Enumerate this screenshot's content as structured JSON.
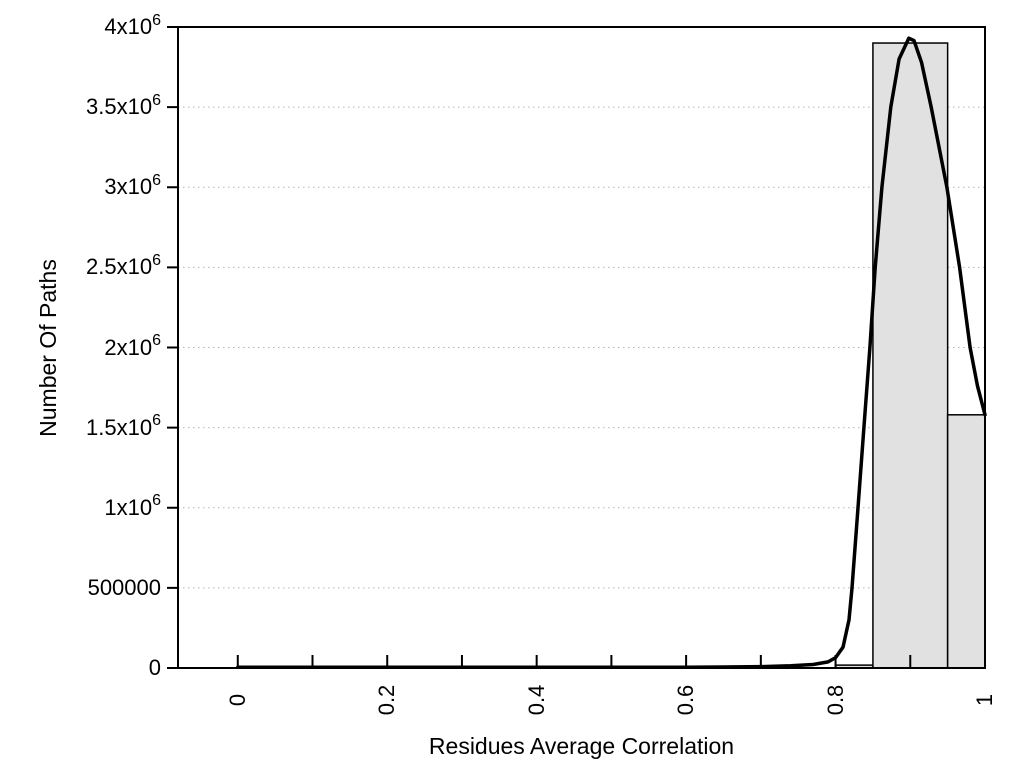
{
  "chart_data": {
    "type": "histogram_with_fit_curve",
    "title": "",
    "x_axis": {
      "title": "Residues Average Correlation",
      "range": [
        -0.08,
        1.0
      ],
      "tick_interval": 0.1,
      "label_interval": 0.2,
      "tick_values": [
        0,
        0.1,
        0.2,
        0.3,
        0.4,
        0.5,
        0.6,
        0.7,
        0.8,
        0.9,
        1.0
      ],
      "labels": [
        {
          "value": 0,
          "text": "0"
        },
        {
          "value": 0.2,
          "text": "0.2"
        },
        {
          "value": 0.4,
          "text": "0.4"
        },
        {
          "value": 0.6,
          "text": "0.6"
        },
        {
          "value": 0.8,
          "text": "0.8"
        },
        {
          "value": 1.0,
          "text": "1"
        }
      ]
    },
    "y_axis": {
      "title": "Number Of Paths",
      "range": [
        0,
        4000000
      ],
      "tick_interval": 500000,
      "ticks": [
        {
          "value": 0,
          "main": "0",
          "sup": ""
        },
        {
          "value": 500000,
          "main": "500000",
          "sup": ""
        },
        {
          "value": 1000000,
          "main": "1x10",
          "sup": "6"
        },
        {
          "value": 1500000,
          "main": "1.5x10",
          "sup": "6"
        },
        {
          "value": 2000000,
          "main": "2x10",
          "sup": "6"
        },
        {
          "value": 2500000,
          "main": "2.5x10",
          "sup": "6"
        },
        {
          "value": 3000000,
          "main": "3x10",
          "sup": "6"
        },
        {
          "value": 3500000,
          "main": "3.5x10",
          "sup": "6"
        },
        {
          "value": 4000000,
          "main": "4x10",
          "sup": "6"
        }
      ]
    },
    "gridlines": {
      "y_values": [
        500000,
        1000000,
        1500000,
        2000000,
        2500000,
        3000000,
        3500000
      ],
      "style": "dotted",
      "color": "#b5b5b5"
    },
    "bars": [
      {
        "x_start": 0.8,
        "x_end": 0.85,
        "value": 18000
      },
      {
        "x_start": 0.85,
        "x_end": 0.95,
        "value": 3900000
      },
      {
        "x_start": 0.95,
        "x_end": 1.0,
        "value": 1580000
      }
    ],
    "bar_style": {
      "fill": "#e1e1e1",
      "stroke": "#000000",
      "stroke_width": 1.5
    },
    "curve": {
      "color": "#000000",
      "width": 3.5,
      "points": [
        [
          0.0,
          5000
        ],
        [
          0.1,
          5000
        ],
        [
          0.2,
          5000
        ],
        [
          0.3,
          5000
        ],
        [
          0.4,
          5000
        ],
        [
          0.5,
          5000
        ],
        [
          0.6,
          5000
        ],
        [
          0.65,
          6000
        ],
        [
          0.7,
          9000
        ],
        [
          0.74,
          14000
        ],
        [
          0.77,
          22000
        ],
        [
          0.79,
          38000
        ],
        [
          0.8,
          65000
        ],
        [
          0.81,
          130000
        ],
        [
          0.818,
          300000
        ],
        [
          0.822,
          500000
        ],
        [
          0.83,
          1000000
        ],
        [
          0.838,
          1500000
        ],
        [
          0.846,
          2000000
        ],
        [
          0.853,
          2500000
        ],
        [
          0.862,
          3000000
        ],
        [
          0.874,
          3500000
        ],
        [
          0.885,
          3800000
        ],
        [
          0.898,
          3930000
        ],
        [
          0.905,
          3915000
        ],
        [
          0.915,
          3780000
        ],
        [
          0.928,
          3500000
        ],
        [
          0.949,
          3000000
        ],
        [
          0.966,
          2500000
        ],
        [
          0.98,
          2000000
        ],
        [
          0.99,
          1760000
        ],
        [
          1.0,
          1580000
        ]
      ]
    },
    "plot_style": {
      "background": "#ffffff",
      "border_color": "#000000",
      "axis_color": "#000000"
    }
  }
}
